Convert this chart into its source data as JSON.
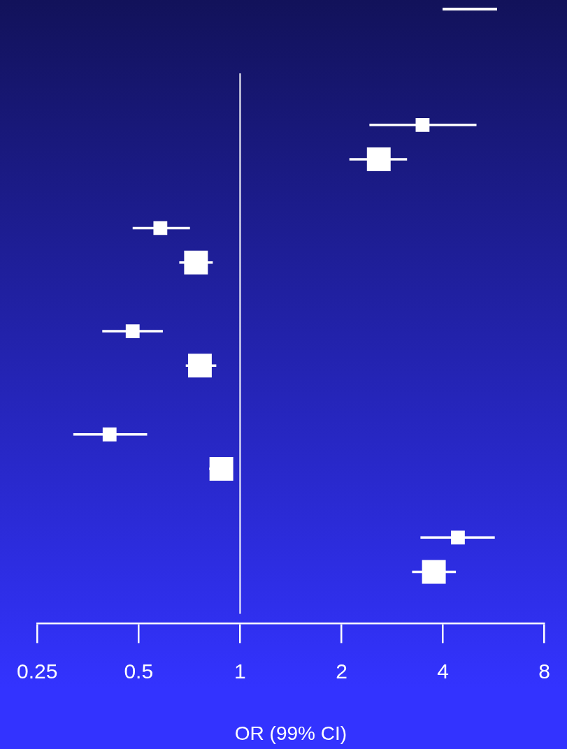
{
  "chart_data": {
    "type": "scatter",
    "orientation": "horizontal",
    "categories": [
      null,
      null,
      null,
      null,
      null,
      null,
      null,
      null,
      null,
      null,
      null,
      null,
      null,
      null,
      null,
      null
    ],
    "xlabel": "OR (99% CI)",
    "log": "x",
    "xlim": [
      0.25,
      8
    ],
    "xticks": [
      0.25,
      0.5,
      1,
      2,
      4,
      8
    ],
    "tick_labels": "x",
    "marker": "square",
    "ref_lines": [
      {
        "axis": "x",
        "value": 1,
        "color": "#ffffff"
      }
    ],
    "series": [
      {
        "color": "#ffffff",
        "values": [
          null,
          3.48,
          null,
          null,
          0.58,
          null,
          null,
          0.48,
          null,
          null,
          0.41,
          null,
          null,
          4.43,
          null,
          null
        ],
        "errors": [
          null,
          [
            2.42,
            5.03
          ],
          null,
          null,
          [
            0.48,
            0.71
          ],
          null,
          null,
          [
            0.39,
            0.59
          ],
          null,
          null,
          [
            0.32,
            0.53
          ],
          null,
          null,
          [
            3.43,
            5.7
          ],
          null,
          null
        ]
      },
      {
        "color": "#ffffff",
        "values": [
          null,
          null,
          2.58,
          null,
          null,
          0.74,
          null,
          null,
          0.76,
          null,
          null,
          0.88,
          null,
          null,
          3.76,
          null
        ],
        "errors": [
          null,
          null,
          [
            2.11,
            3.13
          ],
          null,
          null,
          [
            0.66,
            0.83
          ],
          null,
          null,
          [
            0.69,
            0.85
          ],
          null,
          null,
          [
            0.81,
            0.95
          ],
          null,
          null,
          [
            3.24,
            4.37
          ],
          null
        ]
      }
    ]
  }
}
